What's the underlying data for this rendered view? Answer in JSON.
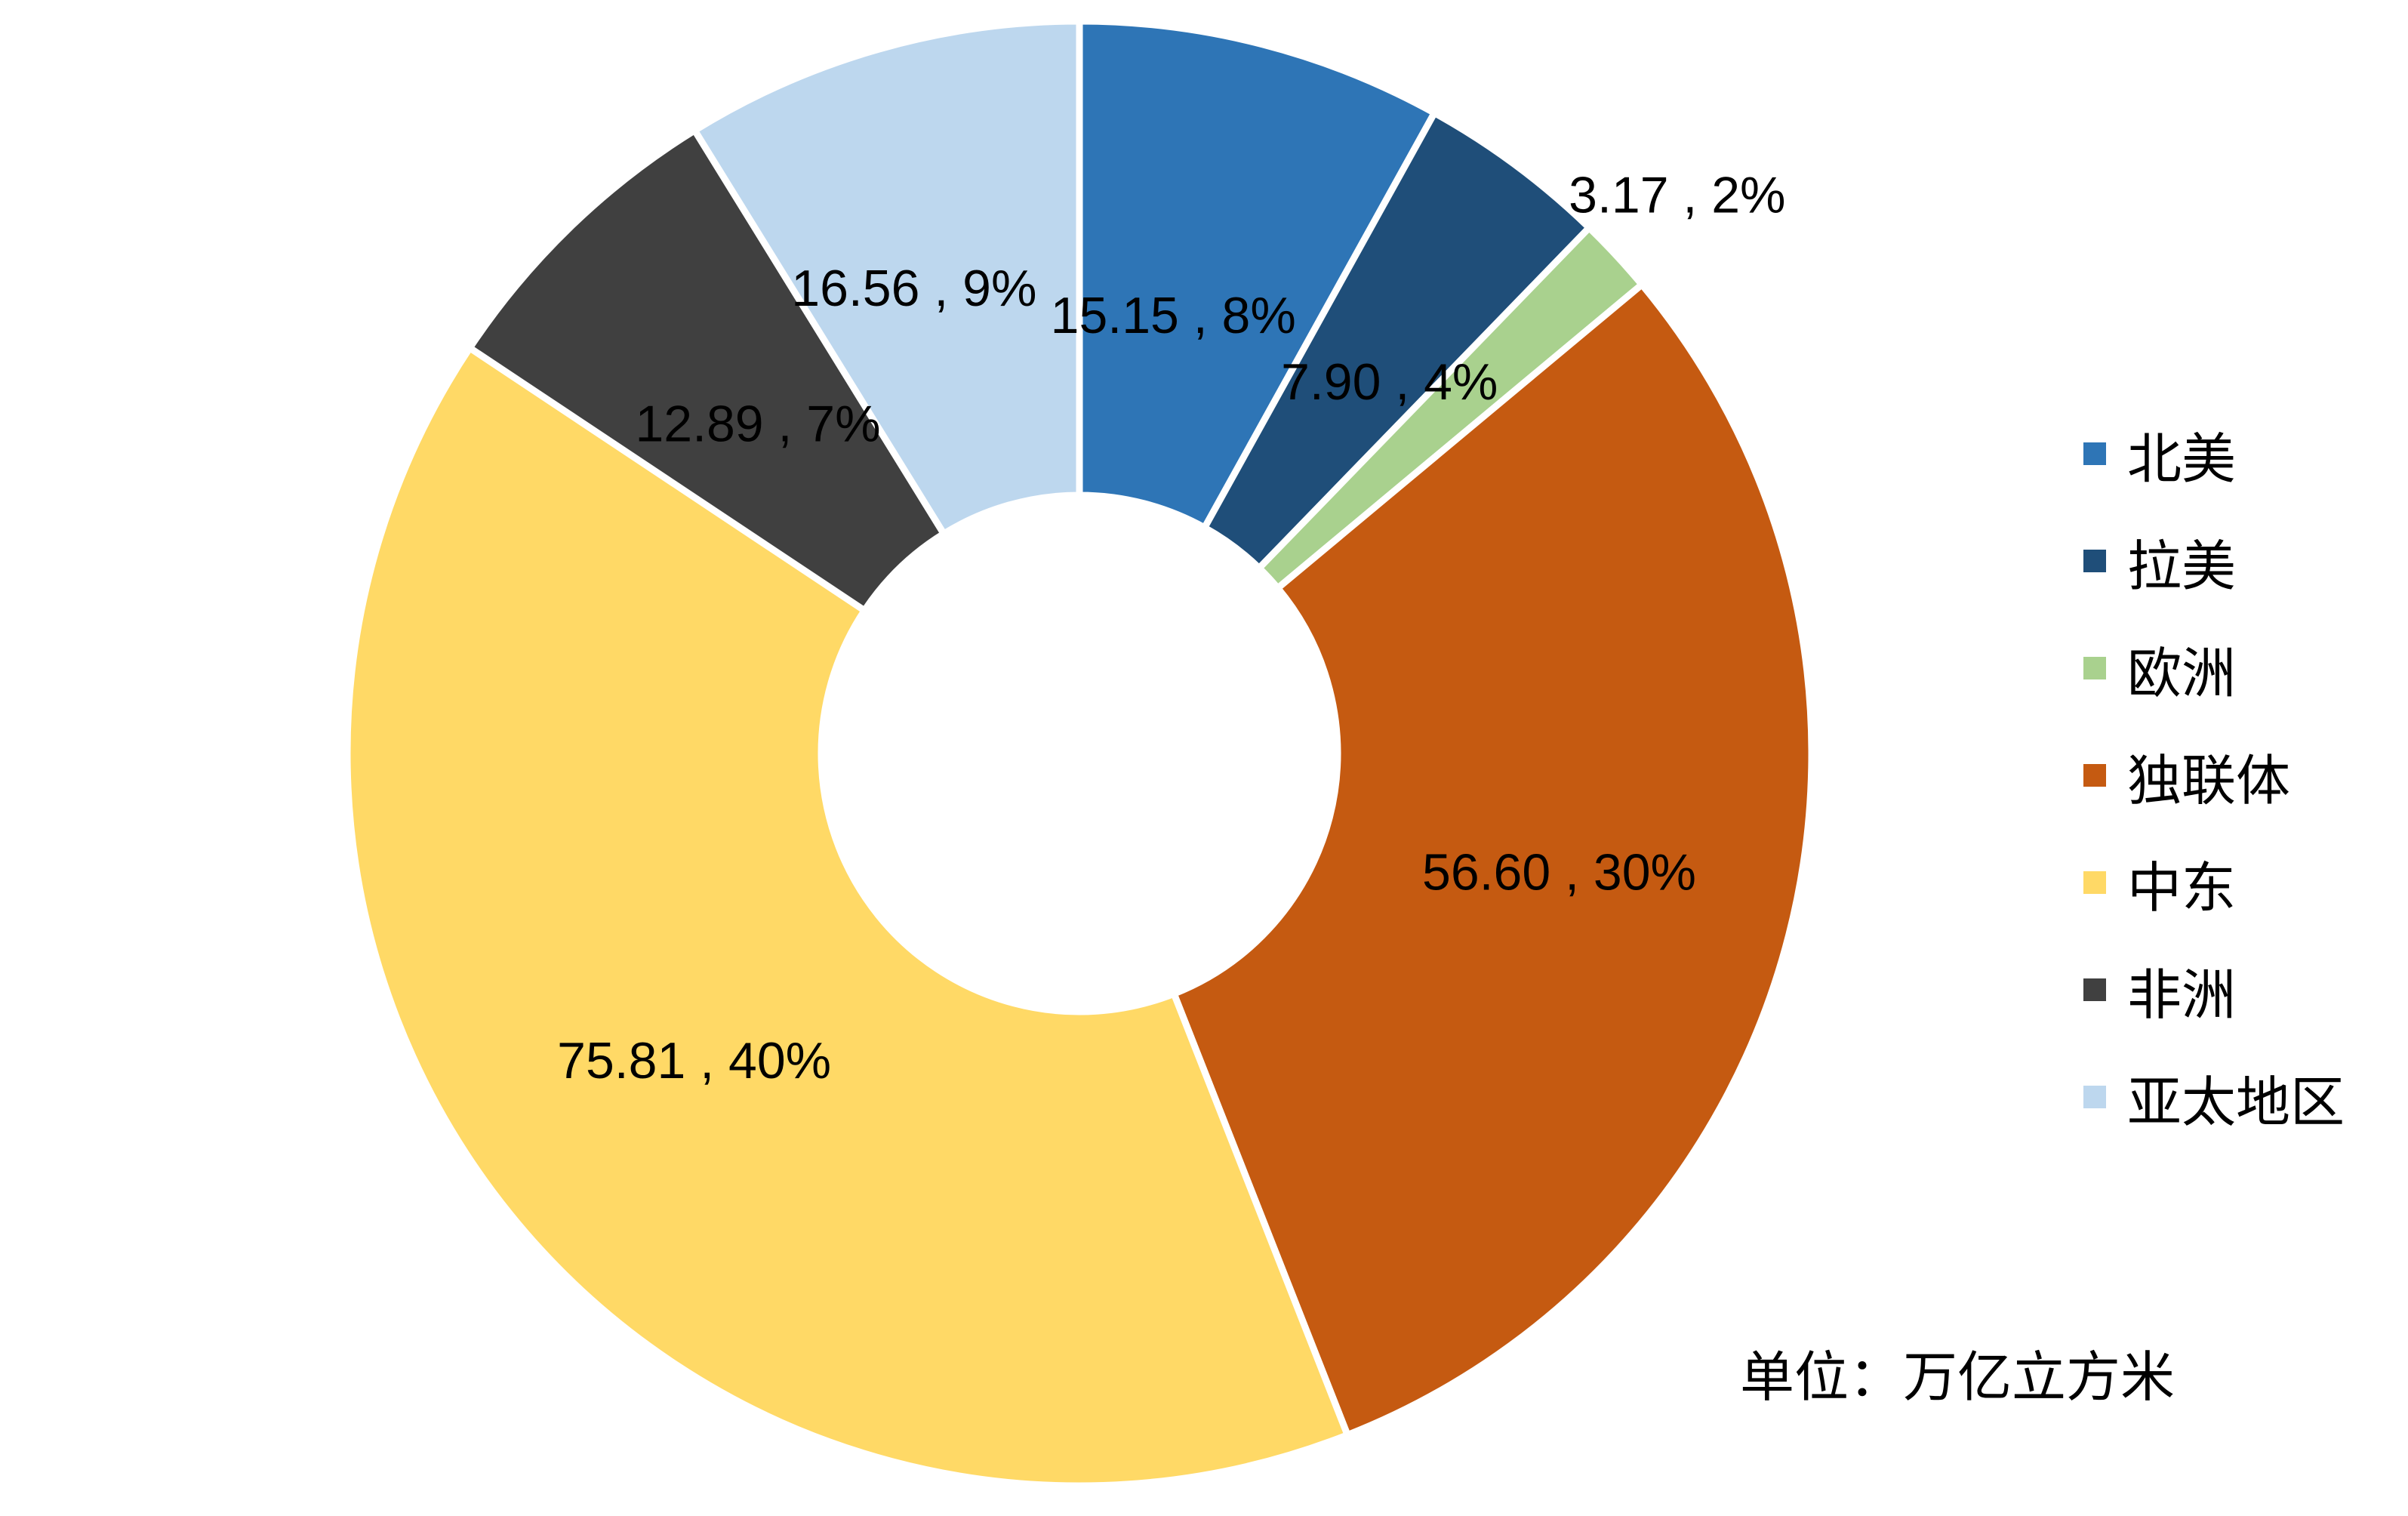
{
  "chart_data": {
    "type": "pie",
    "donut": true,
    "categories": [
      "北美",
      "拉美",
      "欧洲",
      "独联体",
      "中东",
      "非洲",
      "亚太地区"
    ],
    "values": [
      15.15,
      7.9,
      3.17,
      56.6,
      75.81,
      12.89,
      16.56
    ],
    "percents": [
      8,
      4,
      2,
      30,
      40,
      7,
      9
    ],
    "data_labels": [
      "15.15 , 8%",
      "7.90 , 4%",
      "3.17 , 2%",
      "56.60 , 30%",
      "75.81 , 40%",
      "12.89 , 7%",
      "16.56 , 9%"
    ],
    "colors": [
      "#2E75B6",
      "#1F4E79",
      "#A9D18E",
      "#C55A11",
      "#FFD966",
      "#404040",
      "#BDD7EE"
    ],
    "legend_position": "right",
    "unit_note": "单位：万亿立方米"
  }
}
